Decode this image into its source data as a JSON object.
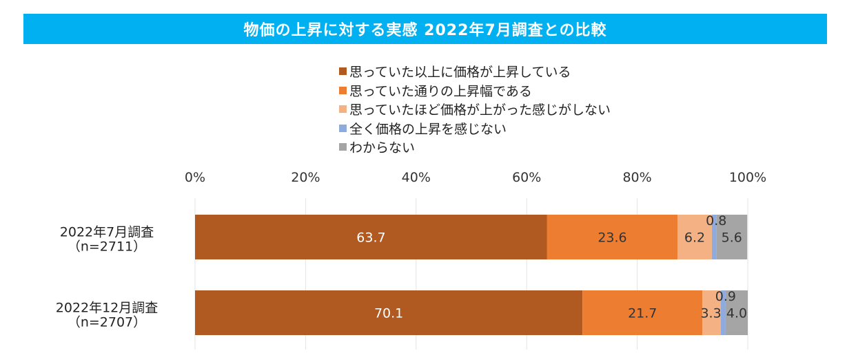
{
  "header": {
    "title": "物価の上昇に対する実感  2022年7月調査との比較"
  },
  "chart_data": {
    "type": "bar",
    "orientation": "horizontal",
    "stacked": true,
    "percent_scale": true,
    "title": "物価の上昇に対する実感  2022年7月調査との比較",
    "categories": [
      {
        "label": "2022年7月調査",
        "sublabel": "（n=2711）"
      },
      {
        "label": "2022年12月調査",
        "sublabel": "（n=2707）"
      }
    ],
    "series": [
      {
        "name": "思っていた以上に価格が上昇している",
        "color": "#b05a22",
        "values": [
          63.7,
          70.1
        ],
        "labels": [
          "63.7",
          "70.1"
        ],
        "label_color": "#ffffff"
      },
      {
        "name": "思っていた通りの上昇幅である",
        "color": "#ed7d31",
        "values": [
          23.6,
          21.7
        ],
        "labels": [
          "23.6",
          "21.7"
        ],
        "label_color": "#333333"
      },
      {
        "name": "思っていたほど価格が上がった感じがしない",
        "color": "#f4b183",
        "values": [
          6.2,
          3.3
        ],
        "labels": [
          "6.2",
          "3.3"
        ],
        "label_color": "#333333"
      },
      {
        "name": "全く価格の上昇を感じない",
        "color": "#8faadc",
        "values": [
          0.8,
          0.9
        ],
        "labels": [
          "0.8",
          "0.9"
        ],
        "label_color": "#333333"
      },
      {
        "name": "わからない",
        "color": "#a5a5a5",
        "values": [
          5.6,
          4.0
        ],
        "labels": [
          "5.6",
          "4.0"
        ],
        "label_color": "#333333"
      }
    ],
    "x_ticks": [
      "0%",
      "20%",
      "40%",
      "60%",
      "80%",
      "100%"
    ],
    "xlim": [
      0,
      100
    ],
    "grid": true,
    "legend_position": "top"
  }
}
